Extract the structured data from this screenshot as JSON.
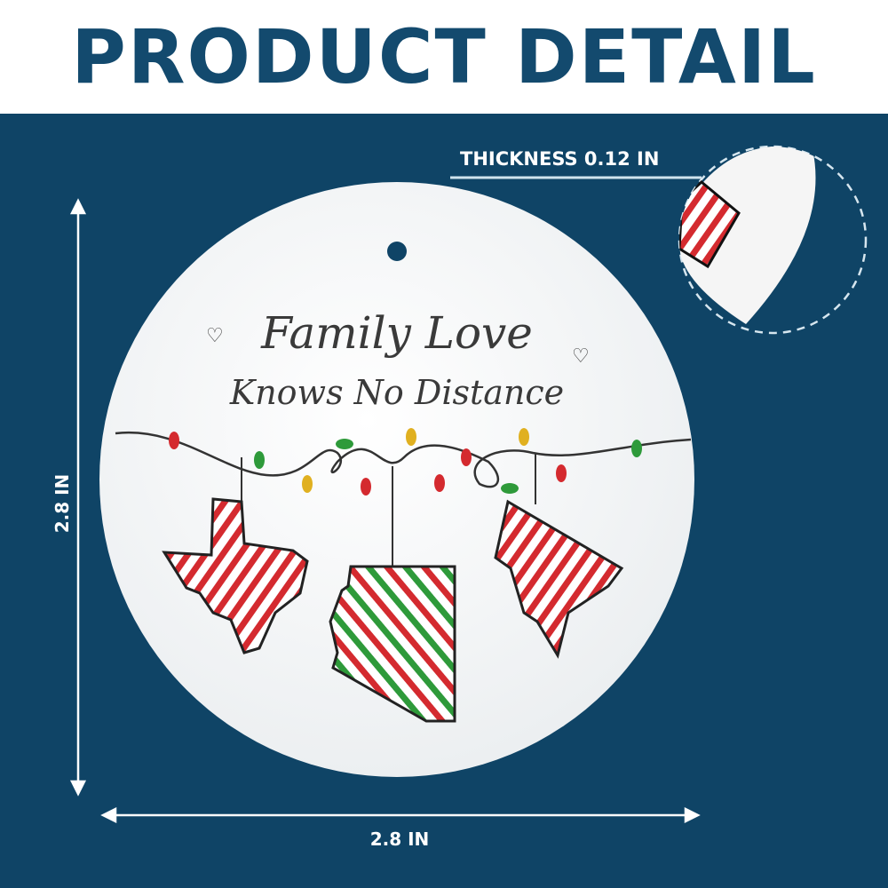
{
  "header": {
    "title": "PRODUCT DETAIL"
  },
  "dimensions": {
    "thickness": "THICKNESS 0.12 IN",
    "height": "2.8 IN",
    "width": "2.8 IN"
  },
  "ornament": {
    "line1": "Family Love",
    "line2": "Knows No Distance"
  },
  "colors": {
    "background": "#0f4466",
    "header_text": "#134a6e",
    "stripe_red": "#d42a2f",
    "stripe_green": "#2e9a3a"
  }
}
